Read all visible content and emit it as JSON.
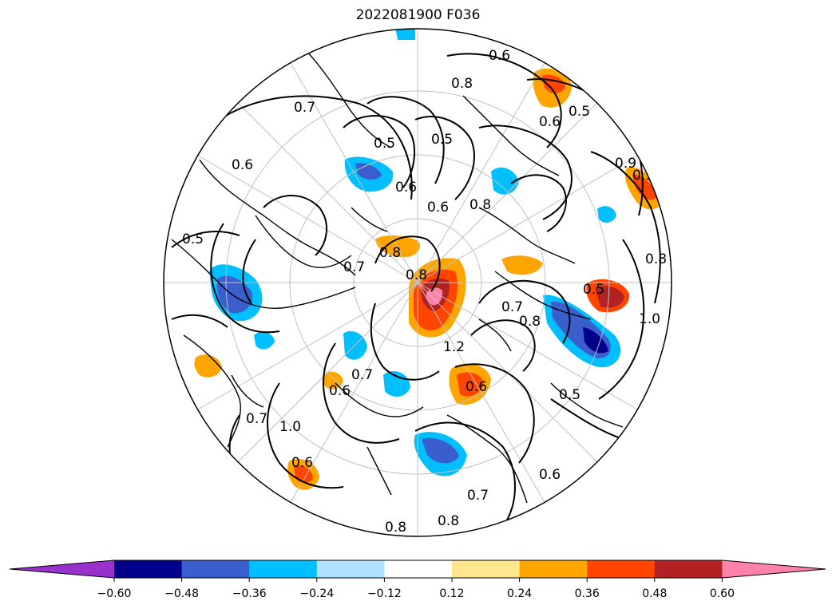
{
  "title": "2022081900 F036",
  "colorbar": {
    "colors": [
      "#9932cc",
      "#00008b",
      "#3a5fcd",
      "#00bfff",
      "#b0e2ff",
      "#ffffff",
      "#ffe78f",
      "#ffa500",
      "#ff4500",
      "#b22222",
      "#ff82ab"
    ],
    "tick_labels": [
      "−0.60",
      "−0.48",
      "−0.36",
      "−0.24",
      "−0.12",
      "0.12",
      "0.24",
      "0.36",
      "0.48",
      "0.60"
    ]
  },
  "contour_labels": [
    "0.7",
    "0.8",
    "0.5",
    "0.5",
    "0.6",
    "0.6",
    "0.5",
    "0.8",
    "0.6",
    "0.9",
    "0.9",
    "0.6",
    "0.7",
    "0.8",
    "0.7",
    "0.8",
    "1.0",
    "0.8",
    "0.7",
    "0.8",
    "1.2",
    "0.6",
    "0.6",
    "0.7",
    "1.0",
    "0.5",
    "0.6",
    "0.7",
    "0.5",
    "0.8",
    "0.7",
    "0.8",
    "0.6",
    "0.5",
    "0.6"
  ]
}
